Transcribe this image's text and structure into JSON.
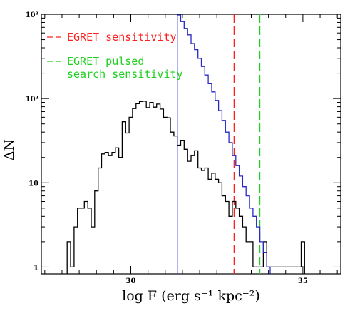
{
  "chart_data": {
    "type": "line",
    "xlabel": "log F (erg s⁻¹ kpc⁻²)",
    "ylabel": "ΔN",
    "xlim": [
      27.4,
      36.1
    ],
    "ylim": [
      0.83,
      1000
    ],
    "yscale": "log",
    "x_ticks": [
      30,
      35
    ],
    "x_tick_labels": [
      "30",
      "35"
    ],
    "y_ticks": [
      1,
      10,
      100,
      1000
    ],
    "y_tick_labels": [
      "1",
      "10",
      "10²",
      "10³"
    ],
    "grid": false,
    "legend_position": "top-left",
    "bin_width": 0.1,
    "series": [
      {
        "color": "#000000",
        "x": [
          28.2,
          28.3,
          28.4,
          28.5,
          28.6,
          28.7,
          28.8,
          28.9,
          29.0,
          29.1,
          29.2,
          29.3,
          29.4,
          29.5,
          29.6,
          29.7,
          29.8,
          29.9,
          30.0,
          30.1,
          30.2,
          30.3,
          30.4,
          30.5,
          30.6,
          30.7,
          30.8,
          30.9,
          31.0,
          31.1,
          31.2,
          31.3,
          31.4,
          31.5,
          31.6,
          31.7,
          31.8,
          31.9,
          32.0,
          32.1,
          32.2,
          32.3,
          32.4,
          32.5,
          32.6,
          32.7,
          32.8,
          32.9,
          33.0,
          33.1,
          33.2,
          33.3,
          33.4,
          33.5,
          33.6,
          33.7,
          33.8,
          33.9,
          34.0,
          34.1,
          34.2,
          34.3,
          34.4,
          34.5,
          34.6,
          34.7,
          34.8,
          34.9,
          35.0
        ],
        "values": [
          2,
          1,
          3,
          5,
          5,
          6,
          5,
          3,
          8,
          15,
          22,
          23,
          21,
          23,
          26,
          20,
          53,
          39,
          60,
          76,
          87,
          92,
          93,
          78,
          90,
          79,
          86,
          75,
          60,
          59,
          40,
          36,
          28,
          32,
          25,
          18,
          21,
          24,
          15,
          14,
          15,
          11,
          13,
          11,
          10,
          7,
          6,
          4,
          6,
          5,
          4,
          3,
          2,
          2,
          1,
          1,
          1,
          2,
          1,
          1,
          1,
          1,
          1,
          1,
          1,
          1,
          1,
          1,
          2
        ]
      },
      {
        "color": "#2828c8",
        "x": [
          31.4,
          31.5,
          31.6,
          31.7,
          31.8,
          31.9,
          32.0,
          32.1,
          32.2,
          32.3,
          32.4,
          32.5,
          32.6,
          32.7,
          32.8,
          32.9,
          33.0,
          33.1,
          33.2,
          33.3,
          33.4,
          33.5,
          33.6,
          33.7,
          33.8,
          33.9,
          34.0
        ],
        "values": [
          980,
          820,
          680,
          570,
          450,
          380,
          300,
          240,
          190,
          150,
          120,
          95,
          72,
          55,
          40,
          30,
          21,
          16,
          12,
          9,
          7,
          5,
          4,
          3,
          2,
          1.5,
          1
        ]
      }
    ],
    "vlines": [
      {
        "x": 33.0,
        "color": "#ff2020",
        "label": "EGRET sensitivity"
      },
      {
        "x": 33.75,
        "color": "#20d020",
        "label_lines": [
          "EGRET pulsed",
          "search sensitivity"
        ]
      }
    ]
  }
}
